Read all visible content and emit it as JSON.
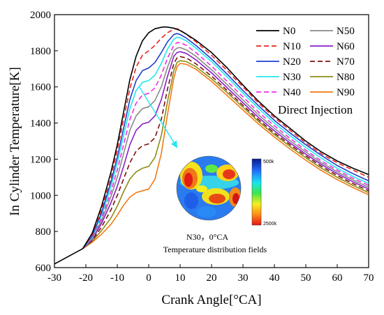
{
  "chart_data": {
    "type": "line",
    "xlabel": "Crank Angle[°CA]",
    "ylabel": "In Cylinder Temperature[K]",
    "xlim": [
      -30,
      70
    ],
    "ylim": [
      600,
      2000
    ],
    "xticks": [
      -30,
      -20,
      -10,
      0,
      10,
      20,
      30,
      40,
      50,
      60,
      70
    ],
    "yticks": [
      600,
      800,
      1000,
      1200,
      1400,
      1600,
      1800,
      2000
    ],
    "legend_position": "top-right",
    "annotation": "Direct Injection",
    "inset": {
      "caption": "N30，0°CA",
      "subcaption": "Temperature distribution fields",
      "colorbar_top": "500k",
      "colorbar_bottom": "2500k",
      "arrow_from_series": "N30",
      "arrow_from": [
        -3,
        1600
      ],
      "arrow_to": [
        9,
        1265
      ]
    },
    "series": [
      {
        "name": "N0",
        "color": "#000000",
        "dash": "solid",
        "x": [
          -30,
          -21,
          -18,
          -15,
          -12,
          -10,
          -8,
          -6,
          -4,
          -2,
          0,
          2,
          4,
          5,
          6,
          8,
          10,
          12,
          15,
          20,
          25,
          30,
          35,
          40,
          45,
          50,
          55,
          60,
          65,
          70
        ],
        "y": [
          620,
          705,
          790,
          940,
          1130,
          1280,
          1460,
          1640,
          1770,
          1855,
          1900,
          1922,
          1930,
          1932,
          1931,
          1925,
          1912,
          1892,
          1858,
          1790,
          1705,
          1610,
          1520,
          1440,
          1370,
          1300,
          1240,
          1190,
          1150,
          1115
        ]
      },
      {
        "name": "N10",
        "color": "#e8231e",
        "dash": "7,4",
        "x": [
          -21,
          -18,
          -15,
          -12,
          -10,
          -8,
          -6,
          -4,
          -2,
          0,
          2,
          4,
          6,
          8,
          9,
          10,
          12,
          15,
          20,
          25,
          30,
          35,
          40,
          45,
          50,
          55,
          60,
          65,
          70
        ],
        "y": [
          705,
          780,
          920,
          1100,
          1250,
          1420,
          1590,
          1710,
          1775,
          1800,
          1830,
          1870,
          1900,
          1920,
          1922,
          1915,
          1890,
          1850,
          1775,
          1690,
          1600,
          1510,
          1430,
          1360,
          1290,
          1230,
          1180,
          1140,
          1100
        ]
      },
      {
        "name": "N20",
        "color": "#1f3fcf",
        "dash": "solid",
        "x": [
          -21,
          -18,
          -15,
          -12,
          -10,
          -8,
          -6,
          -4,
          -2,
          0,
          2,
          4,
          6,
          8,
          9,
          10,
          12,
          15,
          20,
          25,
          30,
          35,
          40,
          45,
          50,
          55,
          60,
          65,
          70
        ],
        "y": [
          705,
          775,
          905,
          1075,
          1210,
          1370,
          1530,
          1635,
          1690,
          1705,
          1735,
          1790,
          1850,
          1890,
          1895,
          1890,
          1870,
          1830,
          1755,
          1670,
          1580,
          1495,
          1415,
          1345,
          1280,
          1220,
          1165,
          1120,
          1080
        ]
      },
      {
        "name": "N30",
        "color": "#22e8f0",
        "dash": "solid",
        "x": [
          -21,
          -18,
          -15,
          -12,
          -10,
          -8,
          -6,
          -4,
          -2,
          0,
          2,
          4,
          6,
          8,
          9,
          10,
          12,
          15,
          20,
          25,
          30,
          35,
          40,
          45,
          50,
          55,
          60,
          65,
          70
        ],
        "y": [
          705,
          770,
          890,
          1050,
          1180,
          1330,
          1480,
          1580,
          1625,
          1635,
          1665,
          1730,
          1810,
          1865,
          1875,
          1872,
          1855,
          1815,
          1740,
          1655,
          1565,
          1480,
          1400,
          1330,
          1265,
          1205,
          1150,
          1105,
          1065
        ]
      },
      {
        "name": "N40",
        "color": "#ee2ee6",
        "dash": "7,4",
        "x": [
          -21,
          -18,
          -15,
          -12,
          -10,
          -8,
          -6,
          -4,
          -2,
          0,
          2,
          4,
          6,
          8,
          9,
          10,
          12,
          15,
          20,
          25,
          30,
          35,
          40,
          45,
          50,
          55,
          60,
          65,
          70
        ],
        "y": [
          705,
          765,
          875,
          1020,
          1140,
          1280,
          1420,
          1510,
          1555,
          1565,
          1595,
          1665,
          1760,
          1830,
          1845,
          1845,
          1830,
          1790,
          1715,
          1630,
          1545,
          1460,
          1385,
          1315,
          1250,
          1190,
          1140,
          1095,
          1055
        ]
      },
      {
        "name": "N50",
        "color": "#8a8a8a",
        "dash": "solid",
        "x": [
          -21,
          -18,
          -15,
          -12,
          -10,
          -8,
          -6,
          -4,
          -2,
          0,
          2,
          4,
          6,
          8,
          9,
          10,
          12,
          15,
          20,
          25,
          30,
          35,
          40,
          45,
          50,
          55,
          60,
          65,
          70
        ],
        "y": [
          705,
          760,
          860,
          995,
          1100,
          1230,
          1360,
          1440,
          1480,
          1490,
          1525,
          1600,
          1710,
          1800,
          1815,
          1818,
          1805,
          1770,
          1695,
          1612,
          1528,
          1445,
          1370,
          1302,
          1240,
          1180,
          1130,
          1085,
          1045
        ]
      },
      {
        "name": "N60",
        "color": "#8a1fc9",
        "dash": "solid",
        "x": [
          -21,
          -18,
          -15,
          -12,
          -10,
          -8,
          -6,
          -4,
          -2,
          0,
          2,
          4,
          6,
          8,
          9,
          10,
          12,
          15,
          20,
          25,
          30,
          35,
          40,
          45,
          50,
          55,
          60,
          65,
          70
        ],
        "y": [
          705,
          755,
          845,
          960,
          1050,
          1160,
          1280,
          1360,
          1395,
          1405,
          1440,
          1530,
          1660,
          1770,
          1790,
          1795,
          1785,
          1750,
          1678,
          1595,
          1512,
          1430,
          1357,
          1290,
          1228,
          1170,
          1120,
          1075,
          1035
        ]
      },
      {
        "name": "N70",
        "color": "#7a1010",
        "dash": "7,4",
        "x": [
          -21,
          -18,
          -15,
          -12,
          -10,
          -8,
          -6,
          -4,
          -2,
          0,
          2,
          4,
          6,
          8,
          9,
          10,
          12,
          15,
          20,
          25,
          30,
          35,
          40,
          45,
          50,
          55,
          60,
          65,
          70
        ],
        "y": [
          705,
          750,
          825,
          920,
          1000,
          1090,
          1180,
          1245,
          1275,
          1285,
          1320,
          1420,
          1590,
          1730,
          1760,
          1768,
          1760,
          1728,
          1660,
          1580,
          1498,
          1418,
          1345,
          1280,
          1218,
          1160,
          1110,
          1065,
          1025
        ]
      },
      {
        "name": "N80",
        "color": "#8c8c14",
        "dash": "solid",
        "x": [
          -21,
          -18,
          -15,
          -12,
          -10,
          -8,
          -6,
          -4,
          -2,
          0,
          2,
          4,
          6,
          8,
          9,
          10,
          12,
          15,
          20,
          25,
          30,
          35,
          40,
          45,
          50,
          55,
          60,
          65,
          70
        ],
        "y": [
          705,
          745,
          805,
          875,
          940,
          1020,
          1090,
          1130,
          1150,
          1160,
          1210,
          1330,
          1520,
          1690,
          1735,
          1745,
          1740,
          1712,
          1645,
          1568,
          1488,
          1408,
          1336,
          1270,
          1208,
          1150,
          1100,
          1055,
          1015
        ]
      },
      {
        "name": "N90",
        "color": "#f07a14",
        "dash": "solid",
        "x": [
          -21,
          -18,
          -15,
          -12,
          -10,
          -8,
          -6,
          -4,
          -2,
          0,
          2,
          4,
          6,
          8,
          9,
          10,
          12,
          15,
          20,
          25,
          30,
          35,
          40,
          45,
          50,
          55,
          60,
          65,
          70
        ],
        "y": [
          705,
          740,
          785,
          840,
          890,
          945,
          990,
          1015,
          1025,
          1035,
          1090,
          1230,
          1450,
          1650,
          1712,
          1730,
          1725,
          1698,
          1630,
          1552,
          1472,
          1394,
          1322,
          1256,
          1194,
          1137,
          1087,
          1043,
          1003
        ]
      }
    ]
  }
}
